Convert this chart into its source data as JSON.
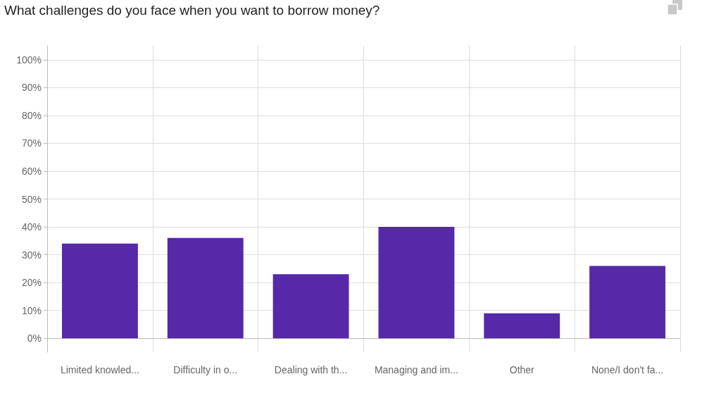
{
  "chart_data": {
    "type": "bar",
    "title": "What challenges do you face when you want to borrow money?",
    "categories": [
      "Limited knowled...",
      "Difficulty in o...",
      "Dealing with th...",
      "Managing and im...",
      "Other",
      "None/I don't fa..."
    ],
    "values": [
      34,
      36,
      23,
      40,
      9,
      26
    ],
    "color": "#5629a8",
    "ylim": [
      -5,
      105
    ],
    "yticks": [
      {
        "value": 0,
        "label": "0%"
      },
      {
        "value": 10,
        "label": "10%"
      },
      {
        "value": 20,
        "label": "20%"
      },
      {
        "value": 30,
        "label": "30%"
      },
      {
        "value": 40,
        "label": "40%"
      },
      {
        "value": 50,
        "label": "50%"
      },
      {
        "value": 60,
        "label": "60%"
      },
      {
        "value": 70,
        "label": "70%"
      },
      {
        "value": 80,
        "label": "80%"
      },
      {
        "value": 90,
        "label": "90%"
      },
      {
        "value": 100,
        "label": "100%"
      }
    ],
    "grid": true
  }
}
